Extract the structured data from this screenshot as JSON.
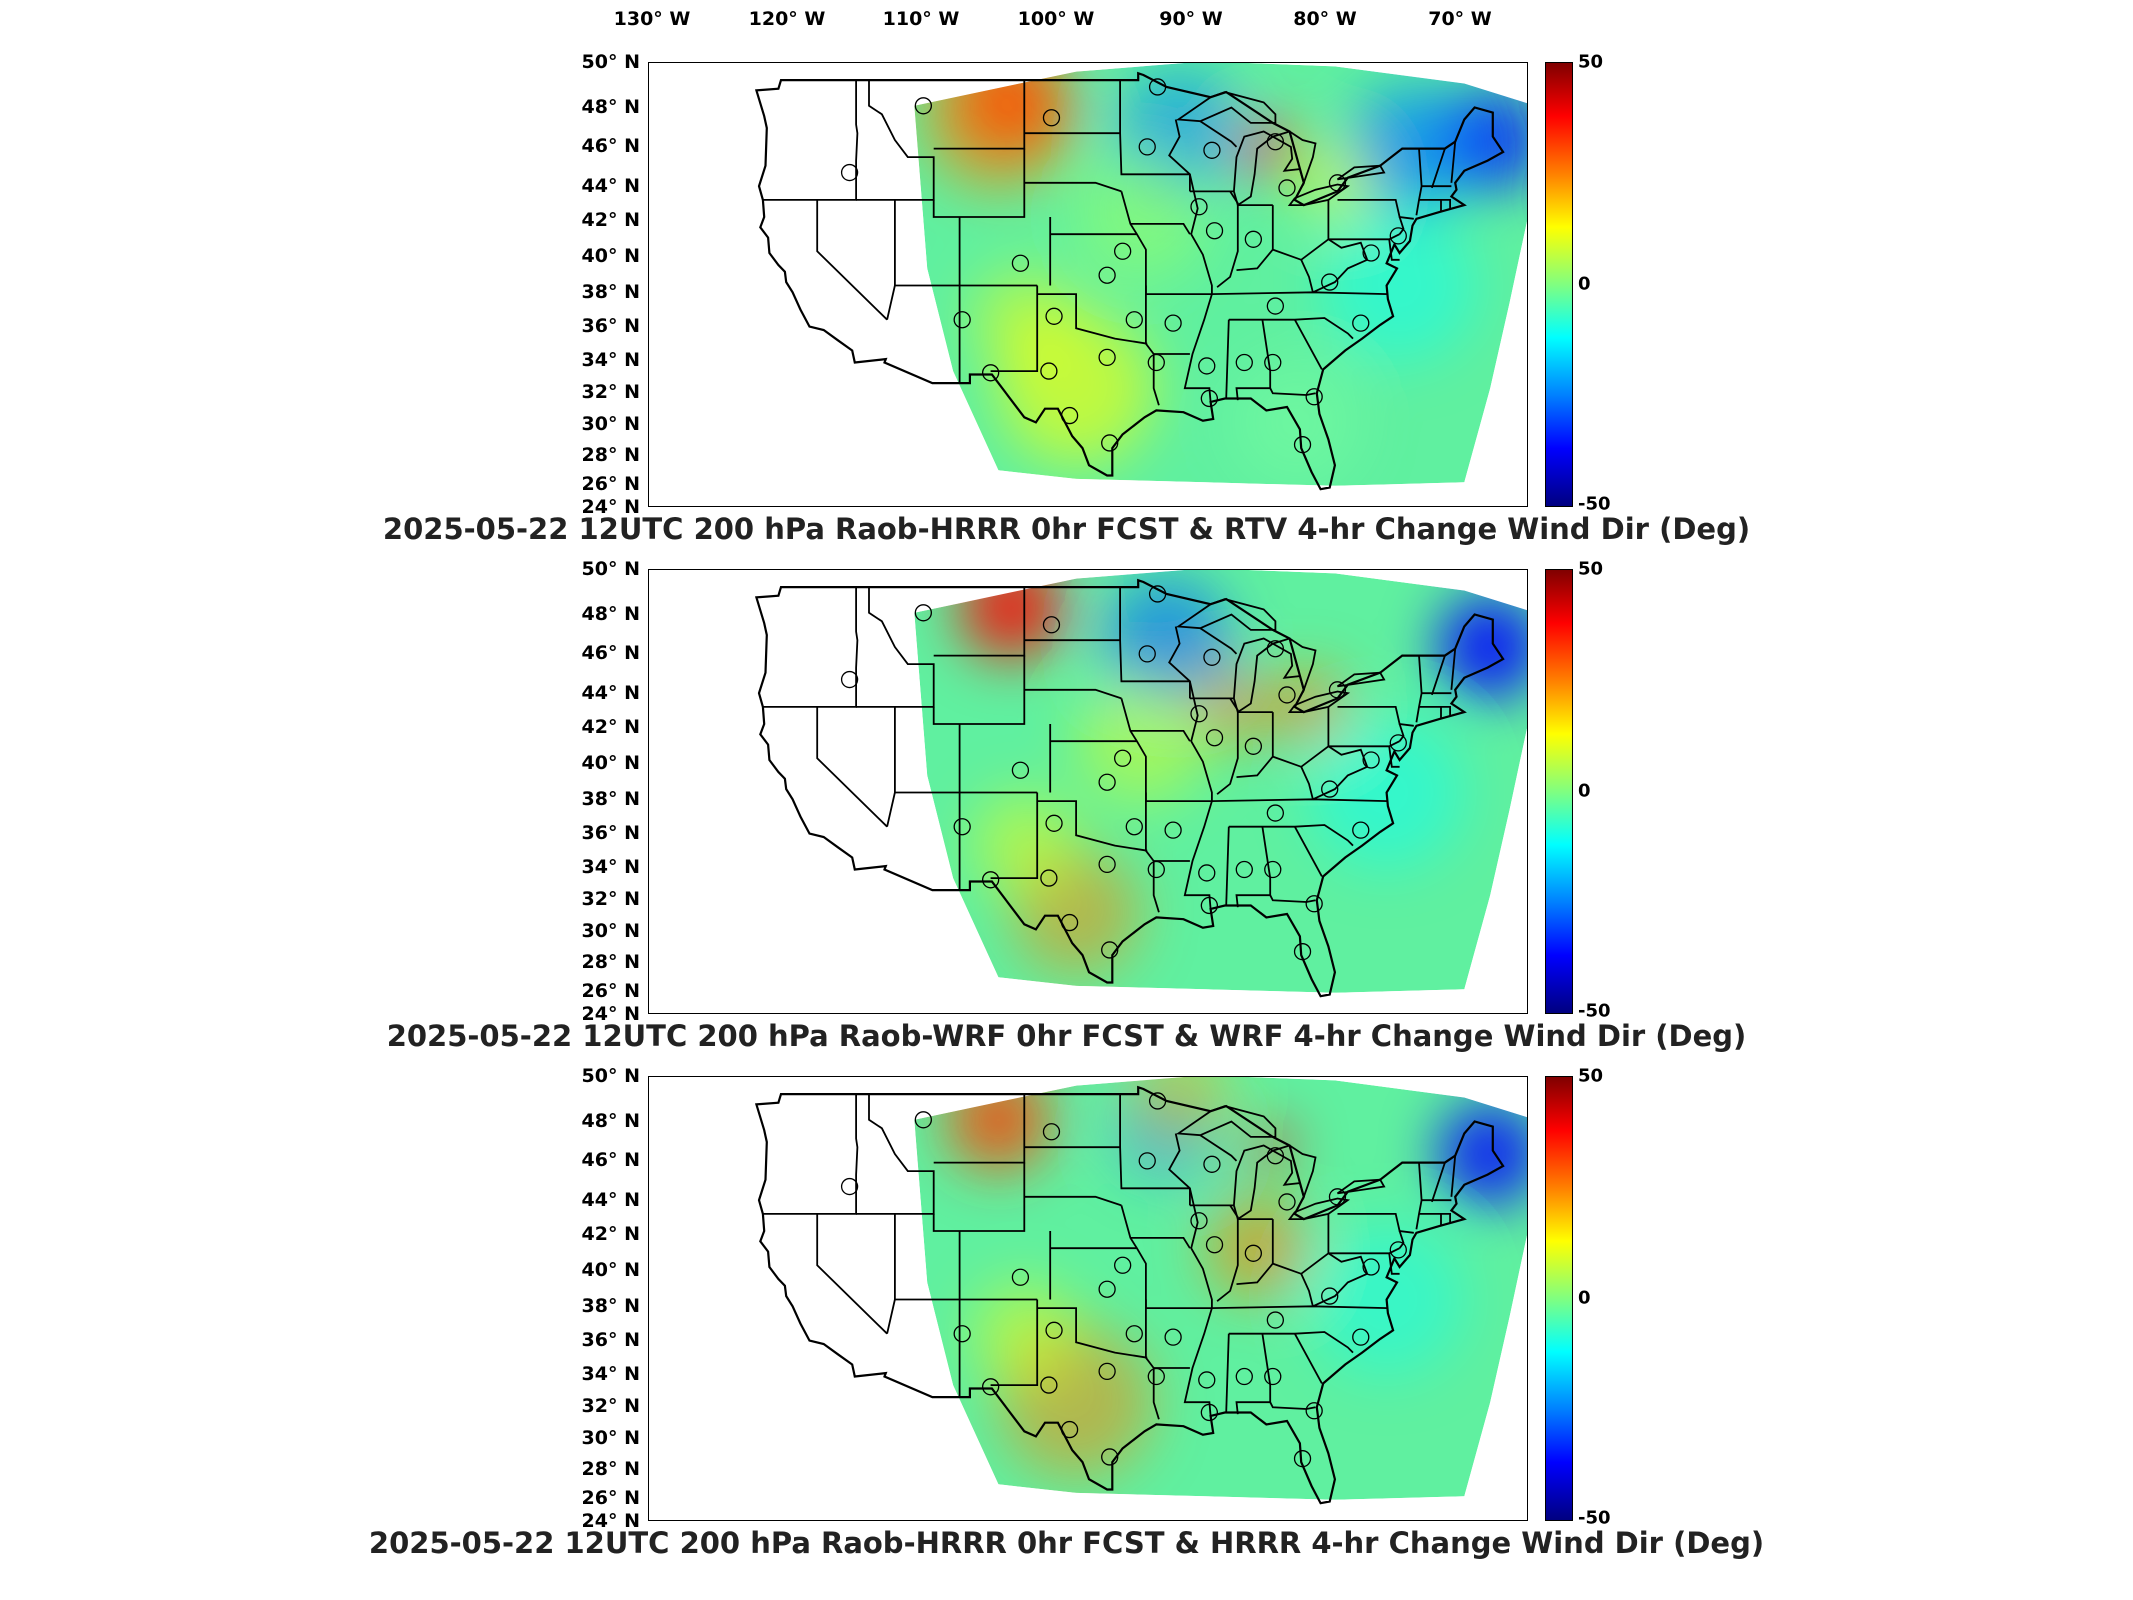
{
  "longitude_labels": [
    "130° W",
    "120° W",
    "110° W",
    "100° W",
    "90° W",
    "80° W",
    "70° W"
  ],
  "latitude_labels": [
    "50° N",
    "48° N",
    "46° N",
    "44° N",
    "42° N",
    "40° N",
    "38° N",
    "36° N",
    "34° N",
    "32° N",
    "30° N",
    "28° N",
    "26° N",
    "24° N"
  ],
  "colorbar": {
    "max_label": "50",
    "mid_label": "0",
    "min_label": "-50",
    "colors": [
      "#800000",
      "#ff0000",
      "#ff8000",
      "#ffff00",
      "#80ff80",
      "#00ffff",
      "#0080ff",
      "#0000ff",
      "#000080"
    ]
  },
  "chart_data": [
    {
      "type": "heatmap",
      "title": "2025-05-22 12UTC 200 hPa Raob-HRRR 0hr FCST & RTV 4-hr Change Wind Dir (Deg)",
      "x_range_deg_w": [
        133,
        65
      ],
      "y_range_deg_n": [
        24,
        50
      ],
      "color_range": [
        -50,
        50
      ],
      "notes": "Strong positive change over northern Plains (Montana/Dakotas) and northern Lake Michigan; strong negative change over New England and Upper Midwest; near zero elsewhere."
    },
    {
      "type": "heatmap",
      "title": "2025-05-22 12UTC 200 hPa Raob-WRF 0hr FCST & WRF 4-hr Change Wind Dir (Deg)",
      "x_range_deg_w": [
        133,
        65
      ],
      "y_range_deg_n": [
        24,
        50
      ],
      "color_range": [
        -50,
        50
      ],
      "notes": "Positive change over northern Plains and Great Lakes; negative change over Maine and Upper Midwest."
    },
    {
      "type": "heatmap",
      "title": "2025-05-22 12UTC 200 hPa Raob-HRRR 0hr FCST & HRRR 4-hr Change Wind Dir (Deg)",
      "x_range_deg_w": [
        133,
        65
      ],
      "y_range_deg_n": [
        24,
        50
      ],
      "color_range": [
        -50,
        50
      ],
      "notes": "Positive change over Montana, Ohio Valley and Texas; negative change over New England."
    }
  ],
  "raob_stations": [
    [
      -111.8,
      47.5
    ],
    [
      -117.5,
      43.6
    ],
    [
      -93.7,
      48.6
    ],
    [
      -94.5,
      45.1
    ],
    [
      -101.9,
      46.8
    ],
    [
      -89.5,
      44.9
    ],
    [
      -84.6,
      45.4
    ],
    [
      -83.7,
      42.7
    ],
    [
      -79.8,
      43.0
    ],
    [
      -90.5,
      41.6
    ],
    [
      -89.3,
      40.2
    ],
    [
      -86.3,
      39.7
    ],
    [
      -96.4,
      39.0
    ],
    [
      -104.3,
      38.3
    ],
    [
      -97.6,
      37.6
    ],
    [
      -80.4,
      37.2
    ],
    [
      -77.2,
      38.9
    ],
    [
      -75.1,
      39.9
    ],
    [
      -84.6,
      35.8
    ],
    [
      -108.8,
      35.0
    ],
    [
      -101.7,
      35.2
    ],
    [
      -95.5,
      35.0
    ],
    [
      -92.5,
      34.8
    ],
    [
      -89.9,
      32.3
    ],
    [
      -87.0,
      32.5
    ],
    [
      -84.8,
      32.5
    ],
    [
      -78.0,
      34.8
    ],
    [
      -106.6,
      31.9
    ],
    [
      -102.1,
      32.0
    ],
    [
      -97.6,
      32.8
    ],
    [
      -93.8,
      32.5
    ],
    [
      -89.7,
      30.4
    ],
    [
      -81.6,
      30.5
    ],
    [
      -100.5,
      29.4
    ],
    [
      -97.4,
      27.8
    ],
    [
      -82.5,
      27.7
    ]
  ]
}
